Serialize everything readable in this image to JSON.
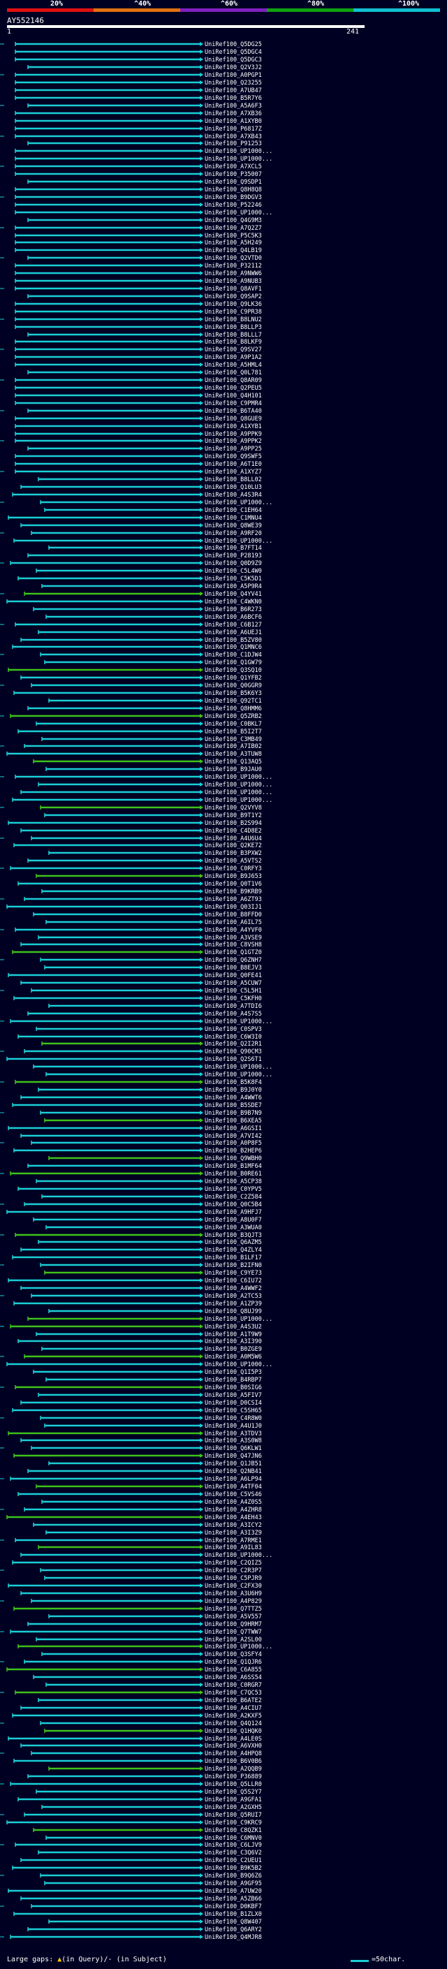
{
  "legend": {
    "labels": [
      "20%",
      "^40%",
      "^60%",
      "^80%",
      "^100%"
    ],
    "colors": [
      "#e01010",
      "#e07010",
      "#8020c0",
      "#10a010",
      "#10c0d0"
    ]
  },
  "query": {
    "name": "AY552146",
    "start": "1",
    "end": "241"
  },
  "hit_colors": {
    "cyan": "#1acfd6",
    "green": "#3ec21a"
  },
  "hit_ids": [
    "UniRef100_Q5DG25",
    "UniRef100_Q5DGC4",
    "UniRef100_Q5DGC3",
    "UniRef100_Q2V3J2",
    "UniRef100_A0PGP1",
    "UniRef100_Q23255",
    "UniRef100_A7UB47",
    "UniRef100_B5R7Y6",
    "UniRef100_A5A6F3",
    "UniRef100_A7XB36",
    "UniRef100_A1XYB0",
    "UniRef100_P6817Z",
    "UniRef100_A7XB43",
    "UniRef100_P91253",
    "UniRef100_UP1000...",
    "UniRef100_UP1000...",
    "UniRef100_A7XCL5",
    "UniRef100_P35007",
    "UniRef100_Q9SDP1",
    "UniRef100_Q8H8Q8",
    "UniRef100_B9DGV3",
    "UniRef100_P52246",
    "UniRef100_UP1000...",
    "UniRef100_Q4G9M3",
    "UniRef100_A7Q2Z7",
    "UniRef100_P5C5K3",
    "UniRef100_A5H249",
    "UniRef100_Q4LB19",
    "UniRef100_Q2VTD0",
    "UniRef100_P32112",
    "UniRef100_A9NWW6",
    "UniRef100_A9NUB3",
    "UniRef100_Q8AVF1",
    "UniRef100_Q9SAP2",
    "UniRef100_Q9LK36",
    "UniRef100_C9PR38",
    "UniRef100_B8LNU2",
    "UniRef100_B8LLP3",
    "UniRef100_B8LLL7",
    "UniRef100_B8LKF9",
    "UniRef100_Q9SV27",
    "UniRef100_A9P1A2",
    "UniRef100_A5HML4",
    "UniRef100_Q0L781",
    "UniRef100_Q8AR09",
    "UniRef100_Q2PEU5",
    "UniRef100_Q4H101",
    "UniRef100_C9PMR4",
    "UniRef100_B6TA40",
    "UniRef100_Q8GUE9",
    "UniRef100_A1XYB1",
    "UniRef100_A9PPK9",
    "UniRef100_A9PPK2",
    "UniRef100_A9PP25",
    "UniRef100_Q9SWF5",
    "UniRef100_A6T1E0",
    "UniRef100_A1XYZ7",
    "UniRef100_B8LL02",
    "UniRef100_Q10LU3",
    "UniRef100_A4S3R4",
    "UniRef100_UP1000...",
    "UniRef100_C1EH64",
    "UniRef100_C1MNU4",
    "UniRef100_Q8WE39",
    "UniRef100_A9RF20",
    "UniRef100_UP1000...",
    "UniRef100_B7FT14",
    "UniRef100_P28193",
    "UniRef100_Q0D9Z9",
    "UniRef100_C5L4W0",
    "UniRef100_C5K5D1",
    "UniRef100_A5P9R4",
    "UniRef100_Q4YV41",
    "UniRef100_C4WKN0",
    "UniRef100_B6R273",
    "UniRef100_A6BCF6",
    "UniRef100_C6B127",
    "UniRef100_A6UEJ1",
    "UniRef100_B5ZV80",
    "UniRef100_Q1MNC6",
    "UniRef100_C1DJW4",
    "UniRef100_Q1GW79",
    "UniRef100_Q3SQ10",
    "UniRef100_Q1YFB2",
    "UniRef100_Q0GGR9",
    "UniRef100_B5K6Y3",
    "UniRef100_Q92TC1",
    "UniRef100_Q8HMM6",
    "UniRef100_Q5ZRB2",
    "UniRef100_C0BKL7",
    "UniRef100_B5I2T7",
    "UniRef100_C3MB49",
    "UniRef100_A7IB02",
    "UniRef100_A3TUW8",
    "UniRef100_Q13AQ5",
    "UniRef100_B9JAU0",
    "UniRef100_UP1000...",
    "UniRef100_UP1000...",
    "UniRef100_UP1000...",
    "UniRef100_UP1000...",
    "UniRef100_Q2VYV8",
    "UniRef100_B9T1Y2",
    "UniRef100_B2S994",
    "UniRef100_C4D8E2",
    "UniRef100_A4U6U4",
    "UniRef100_Q2KE72",
    "UniRef100_B3PXW2",
    "UniRef100_A5VTS2",
    "UniRef100_C0RFY3",
    "UniRef100_B9J653",
    "UniRef100_Q0T1V6",
    "UniRef100_B9KRB9",
    "UniRef100_A6ZT93",
    "UniRef100_Q03IJ1",
    "UniRef100_B8FFD0",
    "UniRef100_A6IL75",
    "UniRef100_A4YVF0",
    "UniRef100_A3VSE9",
    "UniRef100_C8VSH8",
    "UniRef100_Q1GTZ0",
    "UniRef100_Q6ZNH7",
    "UniRef100_B8EJV3",
    "UniRef100_Q0FE41",
    "UniRef100_A5CUW7",
    "UniRef100_C5L5H1",
    "UniRef100_C5KFH0",
    "UniRef100_A7TDI6",
    "UniRef100_A4S7S5",
    "UniRef100_UP1000...",
    "UniRef100_C0SPV3",
    "UniRef100_C6W3I0",
    "UniRef100_Q2I2R1",
    "UniRef100_Q90CM3",
    "UniRef100_Q2S6T1",
    "UniRef100_UP1000...",
    "UniRef100_UP1000...",
    "UniRef100_B5K8F4",
    "UniRef100_B9J0Y0",
    "UniRef100_A4WWT6",
    "UniRef100_B5SDE7",
    "UniRef100_B9B7N9",
    "UniRef100_B6XEA5",
    "UniRef100_A6GSI1",
    "UniRef100_A7VI42",
    "UniRef100_A0P8F5",
    "UniRef100_B2HEP6",
    "UniRef100_Q9WBH0",
    "UniRef100_B1MF64",
    "UniRef100_B0RE61",
    "UniRef100_A5CP38",
    "UniRef100_C0YPV5",
    "UniRef100_C2Z584",
    "UniRef100_Q0C5B4",
    "UniRef100_A9HFJ7",
    "UniRef100_A8U0F7",
    "UniRef100_A3WUA0",
    "UniRef100_B3QJT3",
    "UniRef100_Q6AZM5",
    "UniRef100_Q4ZLY4",
    "UniRef100_B1LF17",
    "UniRef100_B2IFN0",
    "UniRef100_C9YE73",
    "UniRef100_C6IU72",
    "UniRef100_A4WWF2",
    "UniRef100_A2TC53",
    "UniRef100_A1ZP39",
    "UniRef100_Q8UJ99",
    "UniRef100_UP1000...",
    "UniRef100_A4S3U2",
    "UniRef100_A1T9W9",
    "UniRef100_A3I390",
    "UniRef100_B0ZGE9",
    "UniRef100_A0M5W6",
    "UniRef100_UP1000...",
    "UniRef100_Q1I5P3",
    "UniRef100_B4RBP7",
    "UniRef100_B0SIG6",
    "UniRef100_A5FIV7",
    "UniRef100_D0CSI4",
    "UniRef100_C5SH65",
    "UniRef100_C4R8W0",
    "UniRef100_A4U1J0",
    "UniRef100_A3TDV3",
    "UniRef100_A3S0W8",
    "UniRef100_Q6KLW1",
    "UniRef100_Q47JN6",
    "UniRef100_Q1JB51",
    "UniRef100_Q2NB41",
    "UniRef100_A6LP94",
    "UniRef100_A4TF04",
    "UniRef100_C5VS46",
    "UniRef100_A4Z0S5",
    "UniRef100_A4ZHR8",
    "UniRef100_A4EH43",
    "UniRef100_A3ICY2",
    "UniRef100_A3I3Z9",
    "UniRef100_A7RME1",
    "UniRef100_A9IL83",
    "UniRef100_UP1000...",
    "UniRef100_C2QIZ5",
    "UniRef100_C2R3P7",
    "UniRef100_C5PJR9",
    "UniRef100_C2FX30",
    "UniRef100_A3U6H9",
    "UniRef100_A4P829",
    "UniRef100_Q7TTZ5",
    "UniRef100_A5V557",
    "UniRef100_Q9HRM7",
    "UniRef100_Q7TWW7",
    "UniRef100_A2SL00",
    "UniRef100_UP1000...",
    "UniRef100_Q3SFY4",
    "UniRef100_Q1QJR6",
    "UniRef100_C6A855",
    "UniRef100_A6SS54",
    "UniRef100_C0RGR7",
    "UniRef100_C7QC53",
    "UniRef100_B6ATE2",
    "UniRef100_A4CIU7",
    "UniRef100_A2KXF5",
    "UniRef100_Q4Q124",
    "UniRef100_Q1HQK0",
    "UniRef100_A4LE0S",
    "UniRef100_A6VXH0",
    "UniRef100_A4HPQ8",
    "UniRef100_B6V0B6",
    "UniRef100_A2QQB9",
    "UniRef100_P36889",
    "UniRef100_Q5LLR0",
    "UniRef100_Q5S2Y7",
    "UniRef100_A9GFA1",
    "UniRef100_A2GXH5",
    "UniRef100_Q5RUI7",
    "UniRef100_C9KRC9",
    "UniRef100_C8QZK1",
    "UniRef100_C6MNV0",
    "UniRef100_C6LJV9",
    "UniRef100_C3Q6V2",
    "UniRef100_C2UEU1",
    "UniRef100_B9K5B2",
    "UniRef100_B9Q6Z6",
    "UniRef100_A9GF95",
    "UniRef100_A7UW20",
    "UniRef100_A5ZB66",
    "UniRef100_D0KBF7",
    "UniRef100_B1ZLX0",
    "UniRef100_Q8W407",
    "UniRef100_Q6ARY2",
    "UniRef100_Q4MJR8"
  ],
  "footer": {
    "large_gaps_prefix": "Large gaps:",
    "large_gaps_query": "(in Query)/",
    "large_gaps_subject": "(in Subject)",
    "scale_text": "=50char."
  }
}
